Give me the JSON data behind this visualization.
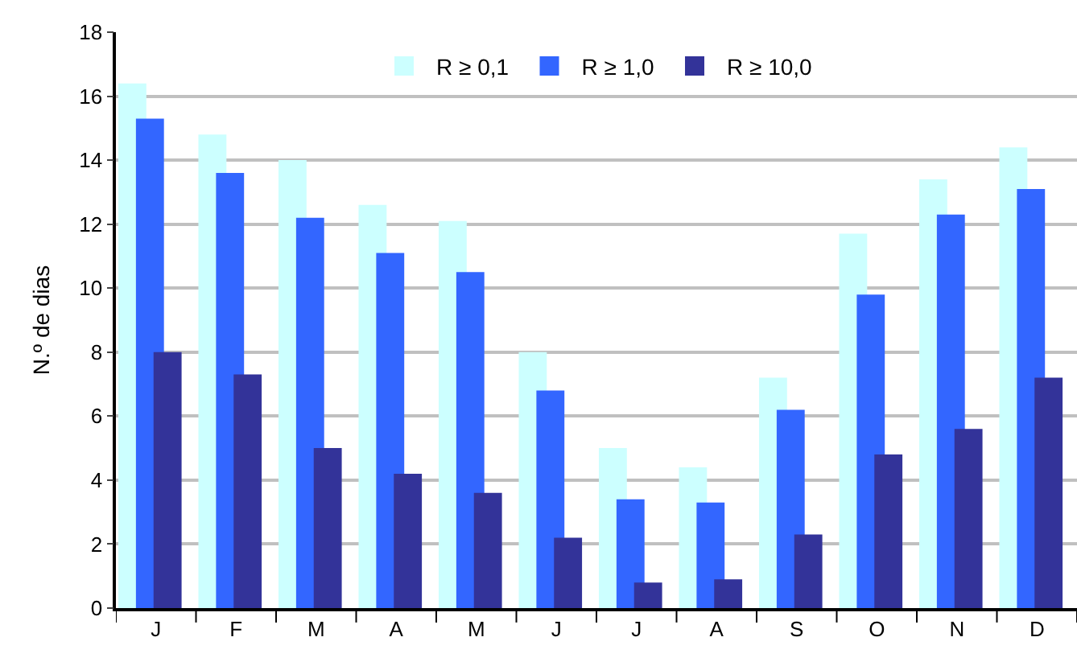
{
  "chart_data": {
    "type": "bar",
    "ylabel": "N.º de dias",
    "categories": [
      "J",
      "F",
      "M",
      "A",
      "M",
      "J",
      "J",
      "A",
      "S",
      "O",
      "N",
      "D"
    ],
    "series": [
      {
        "name": "R ≥ 0,1",
        "color": "#ccffff",
        "values": [
          16.4,
          14.8,
          14.0,
          12.6,
          12.1,
          8.0,
          5.0,
          4.4,
          7.2,
          11.7,
          13.4,
          14.4
        ]
      },
      {
        "name": "R ≥ 1,0",
        "color": "#3366ff",
        "values": [
          15.3,
          13.6,
          12.2,
          11.1,
          10.5,
          6.8,
          3.4,
          3.3,
          6.2,
          9.8,
          12.3,
          13.1
        ]
      },
      {
        "name": "R ≥ 10,0",
        "color": "#333399",
        "values": [
          8.0,
          7.3,
          5.0,
          4.2,
          3.6,
          2.2,
          0.8,
          0.9,
          2.3,
          4.8,
          5.6,
          7.2
        ]
      }
    ],
    "ylim": [
      0,
      18
    ],
    "yticks": [
      0,
      2,
      4,
      6,
      8,
      10,
      12,
      14,
      16,
      18
    ],
    "grid": "y",
    "legend": "top"
  }
}
